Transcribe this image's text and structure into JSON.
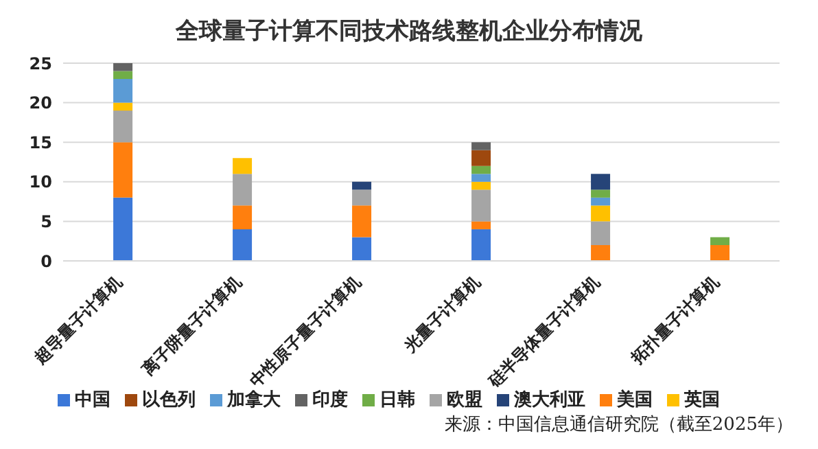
{
  "chart_data": {
    "type": "bar",
    "title": "全球量子计算不同技术路线整机企业分布情况",
    "categories": [
      "超导量子计算机",
      "离子阱量子计算机",
      "中性原子量子计算机",
      "光量子计算机",
      "硅半导体量子计算机",
      "拓扑量子计算机"
    ],
    "stacked": true,
    "ylim": [
      0,
      25
    ],
    "yticks": [
      0,
      5,
      10,
      15,
      20,
      25
    ],
    "grid": "y",
    "legend": "bottom",
    "annotations": [
      "来源：中国信息通信研究院（截至2025年）"
    ],
    "series": [
      {
        "name": "中国",
        "color": "#3c78d8",
        "values": [
          8,
          4,
          3,
          4,
          0,
          0
        ]
      },
      {
        "name": "美国",
        "color": "#ff7f0e",
        "values": [
          7,
          3,
          4,
          1,
          2,
          2
        ]
      },
      {
        "name": "欧盟",
        "color": "#a5a5a5",
        "values": [
          4,
          4,
          2,
          4,
          3,
          0
        ]
      },
      {
        "name": "英国",
        "color": "#ffc000",
        "values": [
          1,
          2,
          0,
          1,
          2,
          0
        ]
      },
      {
        "name": "加拿大",
        "color": "#5b9bd5",
        "values": [
          3,
          0,
          0,
          1,
          1,
          0
        ]
      },
      {
        "name": "日韩",
        "color": "#70ad47",
        "values": [
          1,
          0,
          0,
          1,
          1,
          1
        ]
      },
      {
        "name": "澳大利亚",
        "color": "#264478",
        "values": [
          0,
          0,
          1,
          0,
          2,
          0
        ]
      },
      {
        "name": "以色列",
        "color": "#9e480e",
        "values": [
          0,
          0,
          0,
          2,
          0,
          0
        ]
      },
      {
        "name": "印度",
        "color": "#636363",
        "values": [
          1,
          0,
          0,
          1,
          0,
          0
        ]
      }
    ]
  }
}
